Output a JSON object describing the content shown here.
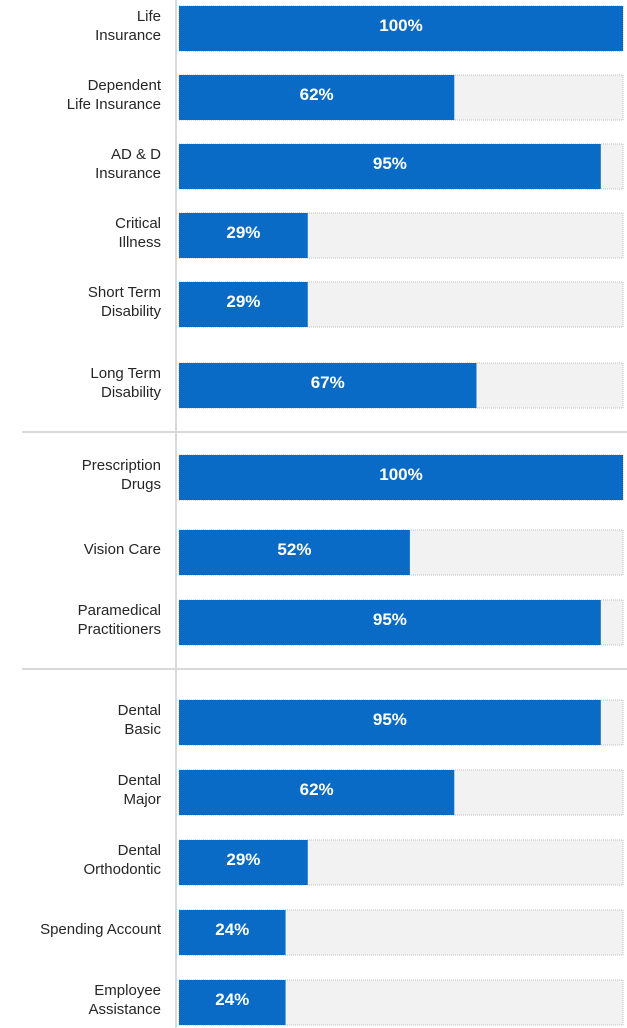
{
  "chart_data": {
    "type": "bar",
    "orientation": "horizontal",
    "groups": [
      {
        "categories": [
          "Life\nInsurance",
          "Dependent\nLife Insurance",
          "AD & D\nInsurance",
          "Critical\nIllness",
          "Short Term\nDisability",
          "Long Term\nDisability"
        ],
        "values": [
          100,
          62,
          95,
          29,
          29,
          67
        ]
      },
      {
        "categories": [
          "Prescription\nDrugs",
          "Vision Care",
          "Paramedical\nPractitioners"
        ],
        "values": [
          100,
          52,
          95
        ]
      },
      {
        "categories": [
          "Dental\nBasic",
          "Dental\nMajor",
          "Dental\nOrthodontic",
          "Spending Account",
          "Employee\nAssistance"
        ],
        "values": [
          95,
          62,
          29,
          24,
          24
        ]
      }
    ],
    "value_suffix": "%",
    "xlim": [
      0,
      100
    ],
    "colors": {
      "bar": "#0a6bc6",
      "track": "#f2f2f2",
      "track_border": "#bfbfbf",
      "separator": "#d9d9d9",
      "axis": "#d9d9d9",
      "label_text": "#262626",
      "value_text": "#ffffff"
    }
  }
}
